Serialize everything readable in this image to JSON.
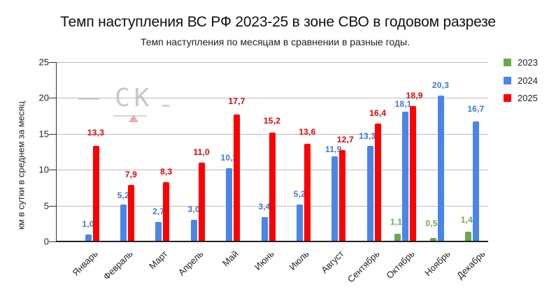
{
  "chart_data": {
    "type": "bar",
    "title": "Темп наступления ВС РФ 2023-25 в зоне СВО в годовом разрезе",
    "subtitle": "Темп наступления по месяцам в сравнении в разные годы.",
    "xlabel": "",
    "ylabel": "км в сутки в среднем за месяц",
    "ylim": [
      0,
      25
    ],
    "yticks": [
      0,
      5,
      10,
      15,
      20,
      25
    ],
    "grid": true,
    "legend_position": "right",
    "categories": [
      "Январь",
      "Февраль",
      "Март",
      "Апрель",
      "Май",
      "Июнь",
      "Июль",
      "Август",
      "Сентябрь",
      "Октябрь",
      "Ноябрь",
      "Декабрь"
    ],
    "series": [
      {
        "name": "2023",
        "color": "#6aa84f",
        "values": [
          null,
          null,
          null,
          null,
          null,
          null,
          null,
          null,
          null,
          1.1,
          0.5,
          1.4
        ],
        "labels": [
          null,
          null,
          null,
          null,
          null,
          null,
          null,
          null,
          null,
          "1,1",
          "0,5",
          "1,4"
        ]
      },
      {
        "name": "2024",
        "color": "#4a86e8",
        "values": [
          1.0,
          5.2,
          2.7,
          3.0,
          10.2,
          3.4,
          5.2,
          11.9,
          13.3,
          18.1,
          20.3,
          16.7
        ],
        "labels": [
          "1,0",
          "5,2",
          "2,7",
          "3,0",
          "10,2",
          "3,4",
          "5,2",
          "11,9",
          "13,3",
          "18,1",
          "20,3",
          "16,7"
        ]
      },
      {
        "name": "2025",
        "color": "#ff0000",
        "values": [
          13.3,
          7.9,
          8.3,
          11.0,
          17.7,
          15.2,
          13.6,
          12.7,
          16.4,
          18.9,
          null,
          null
        ],
        "labels": [
          "13,3",
          "7,9",
          "8,3",
          "11,0",
          "17,7",
          "15,2",
          "13,6",
          "12,7",
          "16,4",
          "18,9",
          null,
          null
        ]
      }
    ],
    "label_colors": {
      "2023": "#6aa84f",
      "2024": "#3c78d8",
      "2025": "#e60000"
    }
  },
  "watermark": {
    "text": "СК"
  }
}
